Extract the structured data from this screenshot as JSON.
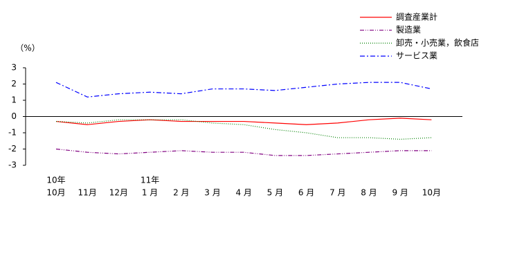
{
  "chart_data": {
    "type": "line",
    "y_label": "（%）",
    "categories": [
      "10月",
      "11月",
      "12月",
      "1 月",
      "2 月",
      "3 月",
      "4 月",
      "5 月",
      "6 月",
      "7 月",
      "8 月",
      "9 月",
      "10月"
    ],
    "year_labels": [
      "10年",
      null,
      null,
      "11年",
      null,
      null,
      null,
      null,
      null,
      null,
      null,
      null,
      null
    ],
    "ylim": [
      -3,
      3
    ],
    "yticks": [
      -3,
      -2,
      -1,
      0,
      1,
      2,
      3
    ],
    "series": [
      {
        "name": "調査産業計",
        "color": "#ff0000",
        "style": "solid",
        "values": [
          -0.3,
          -0.5,
          -0.3,
          -0.2,
          -0.3,
          -0.3,
          -0.3,
          -0.4,
          -0.5,
          -0.4,
          -0.2,
          -0.1,
          -0.2
        ]
      },
      {
        "name": "製造業",
        "color": "#800080",
        "style": "dash-dot-dot",
        "values": [
          -2.0,
          -2.2,
          -2.3,
          -2.2,
          -2.1,
          -2.2,
          -2.2,
          -2.4,
          -2.4,
          -2.3,
          -2.2,
          -2.1,
          -2.1
        ]
      },
      {
        "name": "卸売・小売業，飲食店",
        "color": "#008000",
        "style": "dotted",
        "values": [
          -0.3,
          -0.4,
          -0.2,
          -0.2,
          -0.2,
          -0.4,
          -0.5,
          -0.8,
          -1.0,
          -1.3,
          -1.3,
          -1.4,
          -1.3
        ]
      },
      {
        "name": "サービス業",
        "color": "#0000ff",
        "style": "dash-dot",
        "values": [
          2.1,
          1.2,
          1.4,
          1.5,
          1.4,
          1.7,
          1.7,
          1.6,
          1.8,
          2.0,
          2.1,
          2.1,
          1.7
        ]
      }
    ]
  }
}
